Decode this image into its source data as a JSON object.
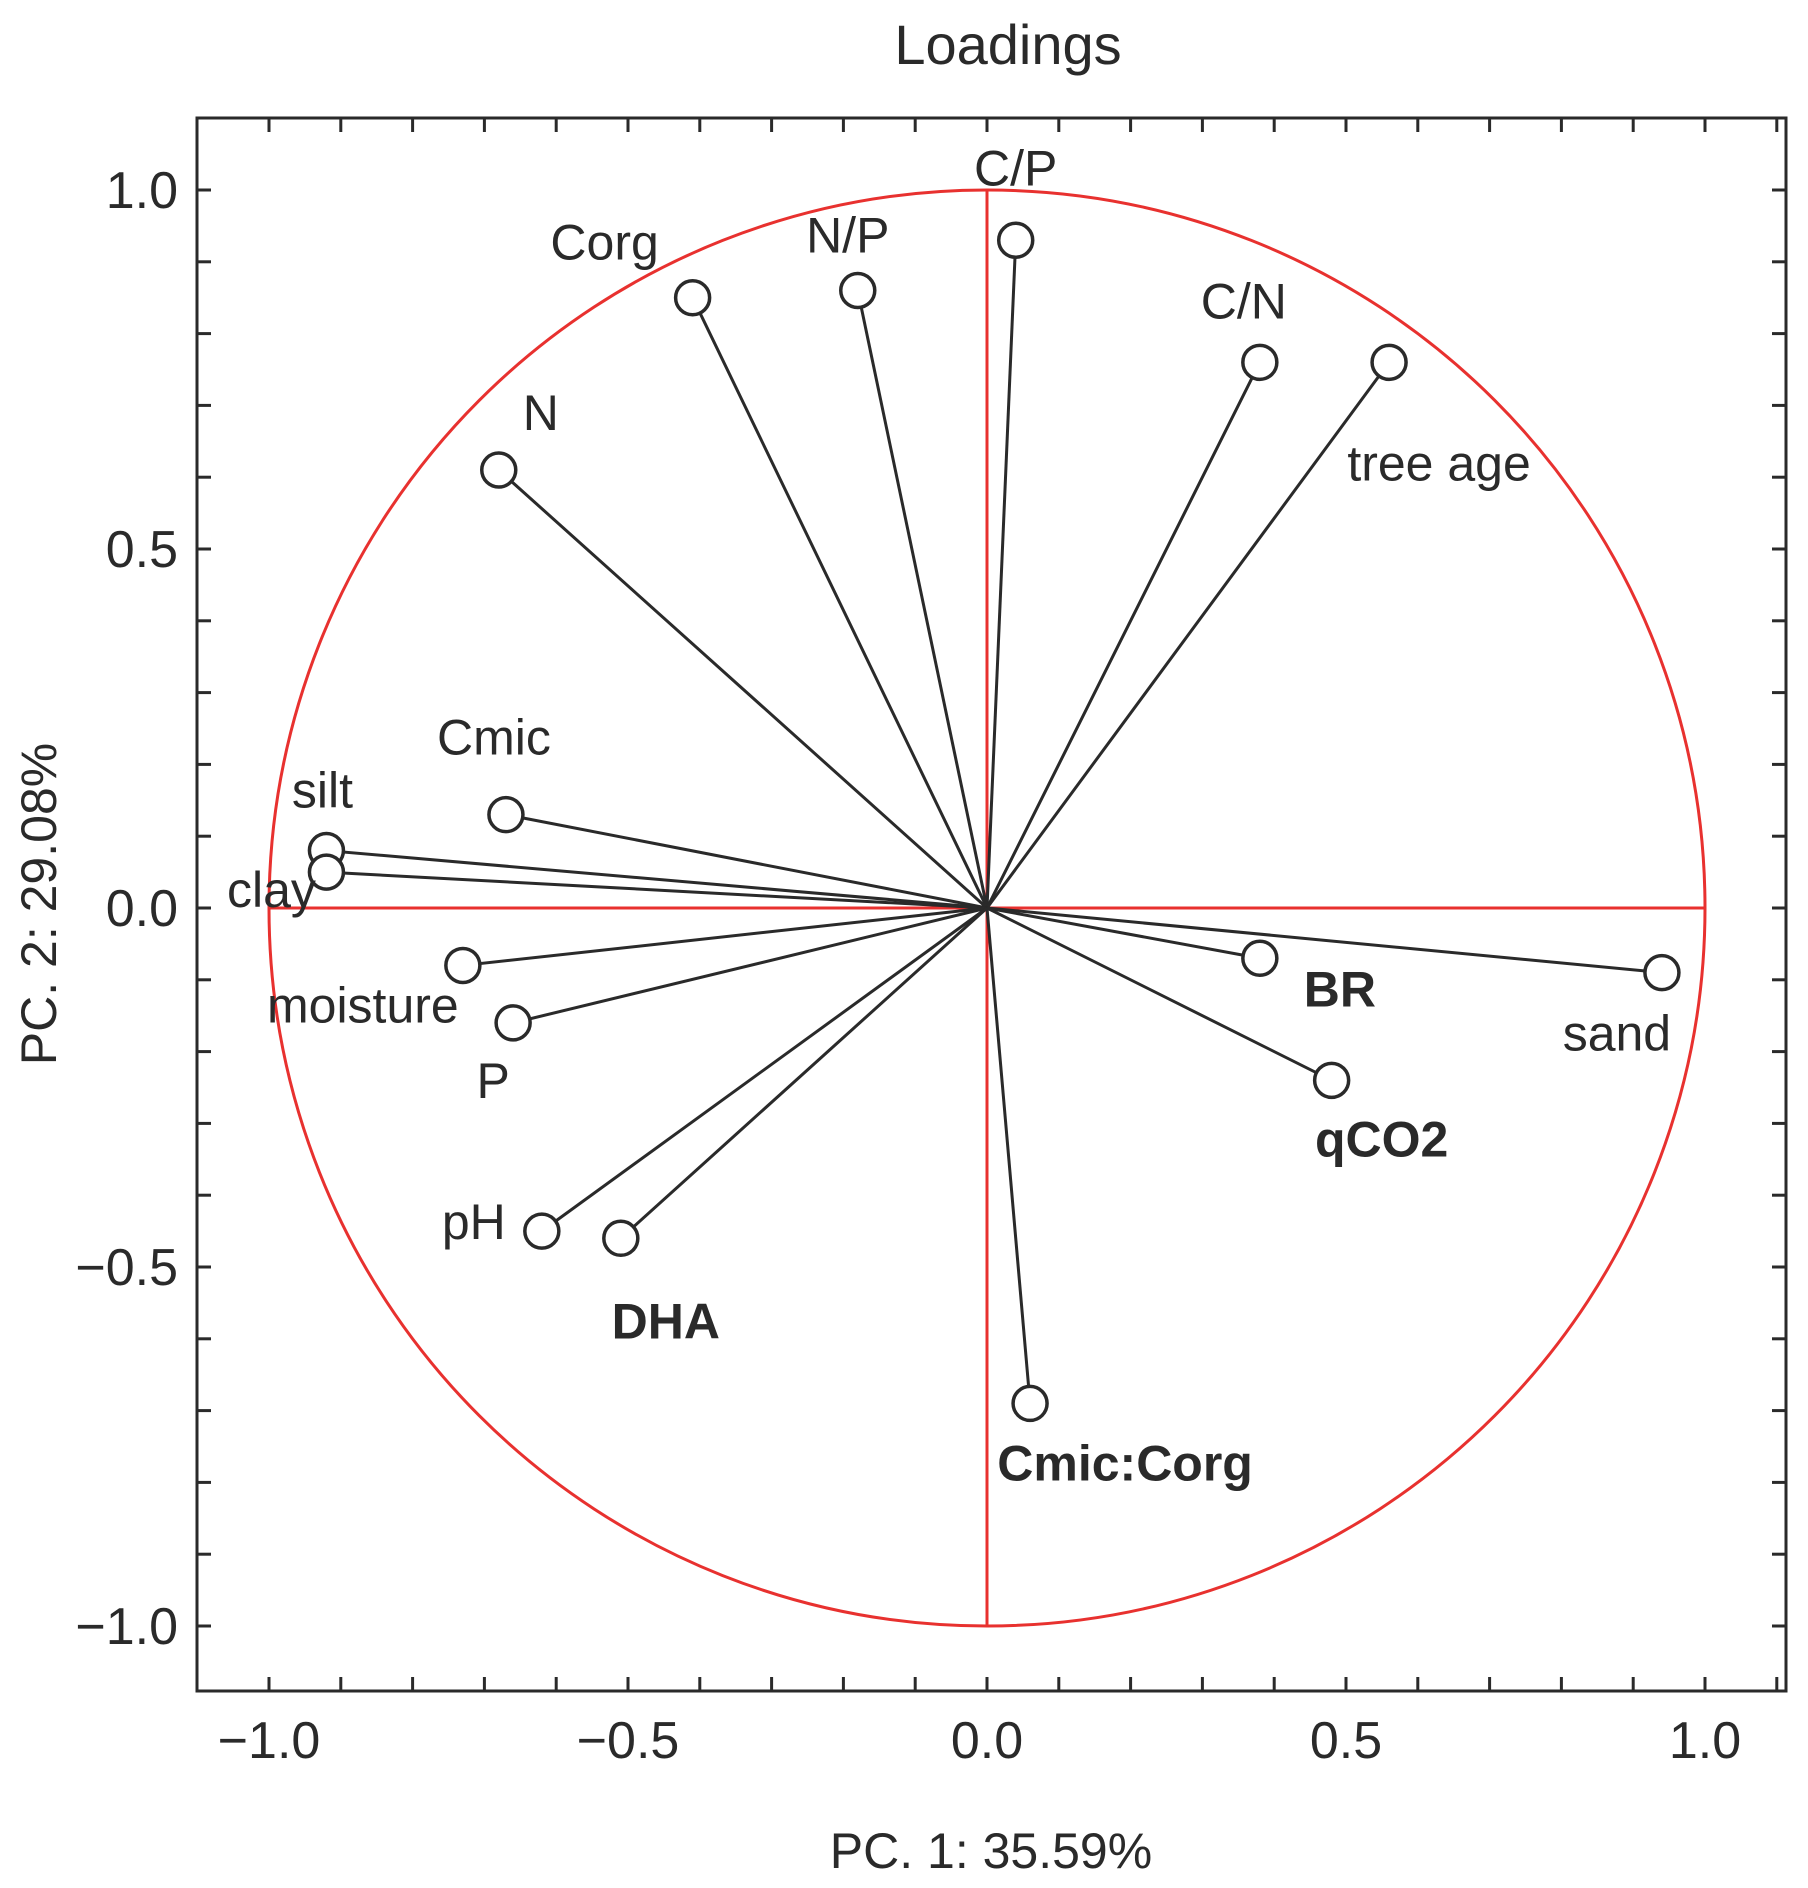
{
  "chart_data": {
    "type": "scatter",
    "subtype": "pca-loadings-biplot",
    "title": "Loadings",
    "xlabel": "PC. 1: 35.59%",
    "ylabel": "PC. 2: 29.08%",
    "xlim": [
      -1.1,
      1.1
    ],
    "ylim": [
      -1.1,
      1.1
    ],
    "xticks": [
      -1.0,
      -0.5,
      0.0,
      0.5,
      1.0
    ],
    "yticks": [
      -1.0,
      -0.5,
      0.0,
      0.5,
      1.0
    ],
    "xtick_labels": [
      "−1.0",
      "−0.5",
      "0.0",
      "0.5",
      "1.0"
    ],
    "ytick_labels": [
      "−1.0",
      "−0.5",
      "0.0",
      "0.5",
      "1.0"
    ],
    "unit_circle_radius": 1.0,
    "reference_color": "#e8312f",
    "series": [
      {
        "name": "C/P",
        "x": 0.04,
        "y": 0.93,
        "bold": false
      },
      {
        "name": "N/P",
        "x": -0.18,
        "y": 0.86,
        "bold": false
      },
      {
        "name": "Corg",
        "x": -0.41,
        "y": 0.85,
        "bold": false
      },
      {
        "name": "C/N",
        "x": 0.38,
        "y": 0.76,
        "bold": false
      },
      {
        "name": "tree age",
        "x": 0.56,
        "y": 0.76,
        "bold": false
      },
      {
        "name": "N",
        "x": -0.68,
        "y": 0.61,
        "bold": false
      },
      {
        "name": "Cmic",
        "x": -0.67,
        "y": 0.13,
        "bold": false
      },
      {
        "name": "silt",
        "x": -0.92,
        "y": 0.08,
        "bold": false
      },
      {
        "name": "clay",
        "x": -0.92,
        "y": 0.05,
        "bold": false
      },
      {
        "name": "moisture",
        "x": -0.73,
        "y": -0.08,
        "bold": false
      },
      {
        "name": "P",
        "x": -0.66,
        "y": -0.16,
        "bold": false
      },
      {
        "name": "pH",
        "x": -0.62,
        "y": -0.45,
        "bold": false
      },
      {
        "name": "DHA",
        "x": -0.51,
        "y": -0.46,
        "bold": true
      },
      {
        "name": "BR",
        "x": 0.38,
        "y": -0.07,
        "bold": true
      },
      {
        "name": "sand",
        "x": 0.94,
        "y": -0.09,
        "bold": false
      },
      {
        "name": "qCO2",
        "x": 0.48,
        "y": -0.24,
        "bold": true
      },
      {
        "name": "Cmic:Corg",
        "x": 0.06,
        "y": -0.69,
        "bold": true
      }
    ]
  }
}
